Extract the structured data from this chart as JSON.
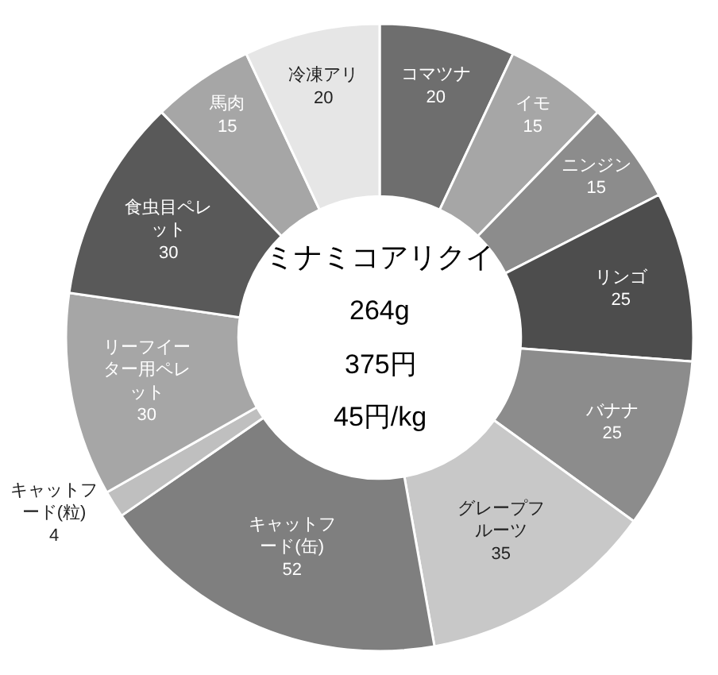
{
  "chart_data": {
    "type": "donut",
    "categories": [
      "コマツナ",
      "イモ",
      "ニンジン",
      "リンゴ",
      "バナナ",
      "グレープフルーツ",
      "キャットフード(缶)",
      "キャットフード(粒)",
      "リーフイーター用ペレット",
      "食虫目ペレット",
      "馬肉",
      "冷凍アリ"
    ],
    "values": [
      20,
      15,
      15,
      25,
      25,
      35,
      52,
      4,
      30,
      30,
      15,
      20
    ],
    "colors": [
      "#6e6e6e",
      "#a6a6a6",
      "#8c8c8c",
      "#4d4d4d",
      "#8c8c8c",
      "#c8c8c8",
      "#7f7f7f",
      "#bfbfbf",
      "#a6a6a6",
      "#595959",
      "#a6a6a6",
      "#e6e6e6"
    ],
    "data_labels": true,
    "legend": false,
    "annotations": [
      "ミナミコアリクイ",
      "264g",
      "375円",
      "45円/kg"
    ]
  }
}
